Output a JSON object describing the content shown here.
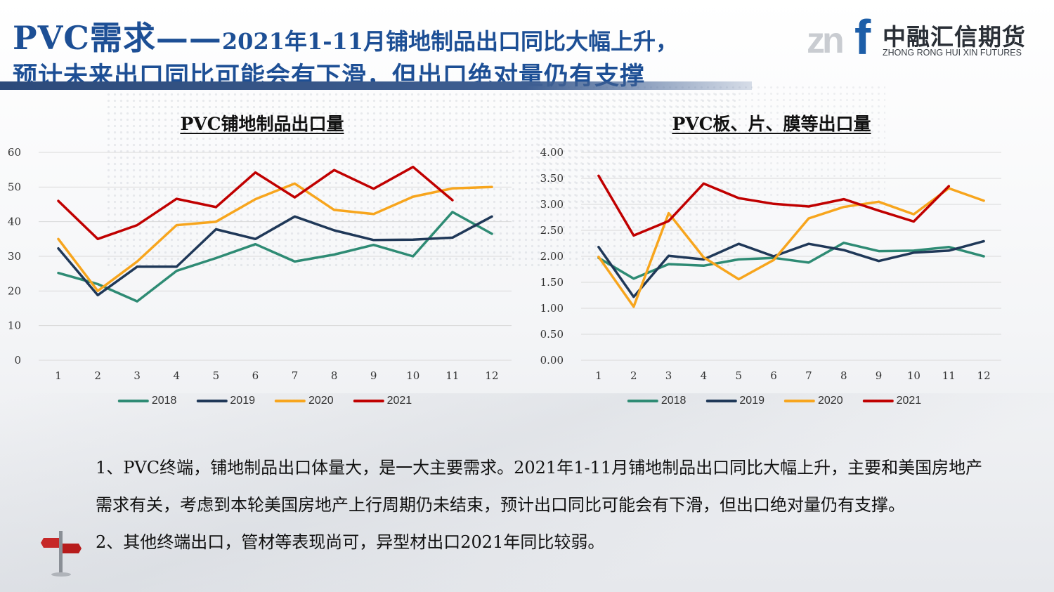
{
  "header": {
    "title_main": "PVC需求——",
    "title_rest": "2021年1-11月铺地制品出口同比大幅上升，",
    "title_line2": "预计未来出口同比可能会有下滑，但出口绝对量仍有支撑"
  },
  "logo": {
    "mark": "zn",
    "letter": "f",
    "name": "中融汇信期货",
    "subtitle": "ZHONG RONG HUI XIN FUTURES"
  },
  "colors": {
    "2018": "#2e8b74",
    "2019": "#1f3858",
    "2020": "#f7a51d",
    "2021": "#c00000",
    "title": "#1d4f95"
  },
  "chart_data": [
    {
      "type": "line",
      "title": "PVC铺地制品出口量",
      "x": [
        "1",
        "2",
        "3",
        "4",
        "5",
        "6",
        "7",
        "8",
        "9",
        "10",
        "11",
        "12"
      ],
      "ylim": [
        0,
        60
      ],
      "yticks": [
        "0",
        "10",
        "20",
        "30",
        "40",
        "50",
        "60"
      ],
      "grid": true,
      "legend_position": "bottom",
      "series": [
        {
          "name": "2018",
          "values": [
            25.2,
            22.0,
            17.0,
            25.8,
            29.5,
            33.5,
            28.5,
            30.5,
            33.3,
            30.0,
            42.8,
            36.5
          ]
        },
        {
          "name": "2019",
          "values": [
            32.3,
            18.8,
            27.0,
            27.0,
            37.8,
            35.0,
            41.5,
            37.5,
            34.7,
            34.8,
            35.4,
            41.5
          ]
        },
        {
          "name": "2020",
          "values": [
            35.0,
            20.0,
            28.5,
            39.0,
            40.0,
            46.5,
            51.0,
            43.4,
            42.2,
            47.2,
            49.6,
            50.0
          ]
        },
        {
          "name": "2021",
          "values": [
            46.0,
            35.0,
            39.0,
            46.6,
            44.2,
            54.2,
            47.0,
            54.9,
            49.5,
            55.8,
            46.2,
            null
          ]
        }
      ]
    },
    {
      "type": "line",
      "title": "PVC板、片、膜等出口量",
      "x": [
        "1",
        "2",
        "3",
        "4",
        "5",
        "6",
        "7",
        "8",
        "9",
        "10",
        "11",
        "12"
      ],
      "ylim": [
        0,
        4
      ],
      "yticks": [
        "0.00",
        "0.50",
        "1.00",
        "1.50",
        "2.00",
        "2.50",
        "3.00",
        "3.50",
        "4.00"
      ],
      "grid": true,
      "legend_position": "bottom",
      "series": [
        {
          "name": "2018",
          "values": [
            1.97,
            1.57,
            1.85,
            1.82,
            1.94,
            1.97,
            1.88,
            2.26,
            2.1,
            2.11,
            2.18,
            2.0
          ]
        },
        {
          "name": "2019",
          "values": [
            2.18,
            1.22,
            2.01,
            1.94,
            2.24,
            2.0,
            2.24,
            2.12,
            1.91,
            2.07,
            2.11,
            2.29
          ]
        },
        {
          "name": "2020",
          "values": [
            1.99,
            1.03,
            2.83,
            1.98,
            1.56,
            1.93,
            2.73,
            2.95,
            3.05,
            2.81,
            3.31,
            3.07
          ]
        },
        {
          "name": "2021",
          "values": [
            3.55,
            2.4,
            2.68,
            3.4,
            3.12,
            3.01,
            2.96,
            3.1,
            2.88,
            2.67,
            3.35,
            null
          ]
        }
      ]
    }
  ],
  "body": {
    "para1": "1、PVC终端，铺地制品出口体量大，是一大主要需求。2021年1-11月铺地制品出口同比大幅上升，主要和美国房地产需求有关，考虑到本轮美国房地产上行周期仍未结束，预计出口同比可能会有下滑，但出口绝对量仍有支撑。",
    "para2": "2、其他终端出口，管材等表现尚可，异型材出口2021年同比较弱。"
  }
}
